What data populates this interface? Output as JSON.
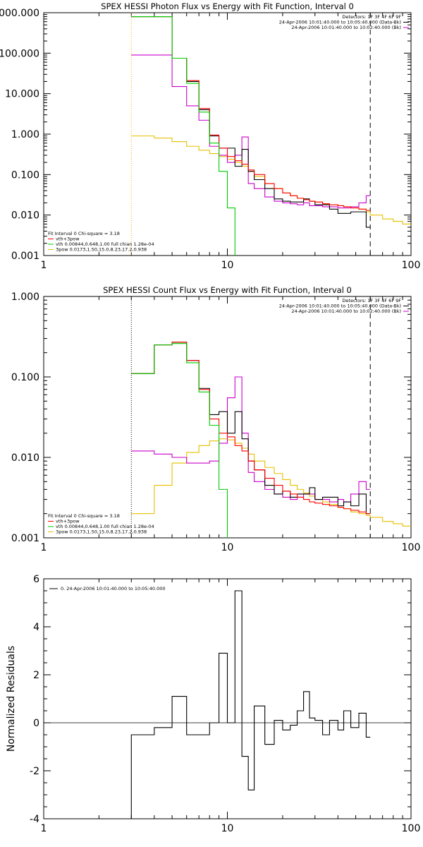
{
  "chart_data": [
    {
      "type": "line",
      "title": "SPEX HESSI Photon Flux vs Energy with Fit Function, Interval 0",
      "xlabel": "",
      "ylabel": "",
      "x_scale": "log",
      "y_scale": "log",
      "xlim": [
        1,
        100
      ],
      "ylim": [
        0.001,
        1000
      ],
      "x_ticks": [
        "1",
        "10",
        "100"
      ],
      "y_ticks": [
        "0.001",
        "0.010",
        "0.100",
        "1.000",
        "10.000",
        "100.000",
        "1000.000"
      ],
      "y_tick_values": [
        0.001,
        0.01,
        0.1,
        1,
        10,
        100,
        1000
      ],
      "vlines": [
        {
          "x": 3,
          "style": "dotted",
          "color": "#ffa500"
        },
        {
          "x": 60,
          "style": "dashed",
          "color": "#000000"
        }
      ],
      "legend_top": [
        "Detectors: 1F 3F 4F 6F 9F",
        "24-Apr-2006 10:01:40.000 to 10:05:40.000 (Data-Bk)",
        "24-Apr-2006 10:01:40.000 to 10:02:40.000 (Bk)"
      ],
      "legend_top_colors": [
        "none",
        "#000000",
        "#cc00cc"
      ],
      "legend_bottom": [
        "Fit Interval 0   Chi-square = 3.18",
        "vth+3pow",
        "vth 0.00844,0.648,1.00   full chian 1.28e-04",
        "3pow 0.0173,1.50,15.0,8.23,17.2,0.938"
      ],
      "legend_bottom_colors": [
        "none",
        "#ff0000",
        "#00cc00",
        "#e5c000"
      ],
      "series": [
        {
          "name": "data-bk",
          "color": "#000000",
          "edges": [
            3,
            4,
            5,
            6,
            7,
            8,
            9,
            10,
            11,
            12,
            13,
            14,
            16,
            18,
            20,
            22,
            24,
            26,
            28,
            30,
            33,
            36,
            40,
            43,
            47,
            52,
            57,
            60
          ],
          "values": [
            800,
            800,
            75,
            20,
            4,
            0.9,
            0.45,
            0.45,
            0.16,
            0.42,
            0.12,
            0.075,
            0.045,
            0.025,
            0.022,
            0.021,
            0.021,
            0.025,
            0.022,
            0.018,
            0.018,
            0.014,
            0.011,
            0.011,
            0.012,
            0.012,
            0.005
          ]
        },
        {
          "name": "bk",
          "color": "#cc00cc",
          "edges": [
            3,
            4,
            5,
            6,
            7,
            8,
            9,
            10,
            11,
            12,
            13,
            14,
            16,
            18,
            20,
            22,
            24,
            26,
            28,
            30,
            33,
            36,
            40,
            43,
            47,
            52,
            57,
            60
          ],
          "values": [
            90,
            90,
            15,
            5,
            2.2,
            0.5,
            0.3,
            0.2,
            0.3,
            0.85,
            0.06,
            0.045,
            0.028,
            0.022,
            0.02,
            0.019,
            0.018,
            0.02,
            0.017,
            0.017,
            0.016,
            0.016,
            0.015,
            0.015,
            0.016,
            0.02,
            0.03
          ]
        },
        {
          "name": "vth+3pow",
          "color": "#ff0000",
          "edges": [
            3,
            4,
            5,
            6,
            7,
            8,
            9,
            10,
            11,
            12,
            13,
            14,
            16,
            18,
            20,
            22,
            24,
            26,
            28,
            30,
            33,
            36,
            40,
            43,
            47,
            52,
            57,
            60
          ],
          "values": [
            800,
            800,
            75,
            21,
            4.3,
            0.95,
            0.45,
            0.28,
            0.22,
            0.18,
            0.13,
            0.1,
            0.06,
            0.045,
            0.035,
            0.03,
            0.026,
            0.024,
            0.022,
            0.021,
            0.019,
            0.018,
            0.017,
            0.016,
            0.015,
            0.014,
            0.013
          ]
        },
        {
          "name": "vth",
          "color": "#00cc00",
          "edges": [
            3,
            4,
            5,
            6,
            7,
            8,
            9,
            10,
            11
          ],
          "values": [
            800,
            800,
            75,
            18,
            3.5,
            0.6,
            0.12,
            0.015
          ]
        },
        {
          "name": "3pow",
          "color": "#e5c000",
          "edges": [
            3,
            4,
            5,
            6,
            7,
            8,
            9,
            10,
            11,
            12,
            13,
            14,
            16,
            18,
            20,
            22,
            24,
            26,
            28,
            30,
            33,
            36,
            40,
            43,
            47,
            52,
            57,
            60,
            70,
            80,
            90,
            100
          ],
          "values": [
            0.9,
            0.8,
            0.65,
            0.5,
            0.4,
            0.33,
            0.28,
            0.24,
            0.2,
            0.16,
            0.12,
            0.09,
            0.06,
            0.045,
            0.035,
            0.03,
            0.026,
            0.024,
            0.022,
            0.021,
            0.019,
            0.018,
            0.017,
            0.016,
            0.015,
            0.014,
            0.012,
            0.01,
            0.008,
            0.007,
            0.006
          ]
        }
      ]
    },
    {
      "type": "line",
      "title": "SPEX HESSI Count Flux vs Energy with Fit Function, Interval 0",
      "xlabel": "",
      "ylabel": "",
      "x_scale": "log",
      "y_scale": "log",
      "xlim": [
        1,
        100
      ],
      "ylim": [
        0.001,
        1
      ],
      "x_ticks": [
        "1",
        "10",
        "100"
      ],
      "y_ticks": [
        "0.001",
        "0.010",
        "0.100",
        "1.000"
      ],
      "y_tick_values": [
        0.001,
        0.01,
        0.1,
        1
      ],
      "vlines": [
        {
          "x": 3,
          "style": "dotted",
          "color": "#000000"
        },
        {
          "x": 60,
          "style": "dashed",
          "color": "#000000"
        }
      ],
      "legend_top": [
        "Detectors: 1F 3F 4F 6F 9F",
        "24-Apr-2006 10:01:40.000 to 10:05:40.000 (Data-Bk)",
        "24-Apr-2006 10:01:40.000 to 10:02:40.000 (Bk)"
      ],
      "legend_top_colors": [
        "none",
        "#000000",
        "#cc00cc"
      ],
      "legend_bottom": [
        "Fit Interval 0   Chi-square = 3.18",
        "vth+3pow",
        "vth 0.00844,0.648,1.00   full chian 1.28e-04",
        "3pow 0.0173,1.50,15.0,8.23,17.2,0.938"
      ],
      "legend_bottom_colors": [
        "none",
        "#ff0000",
        "#00cc00",
        "#e5c000"
      ],
      "series": [
        {
          "name": "data-bk",
          "color": "#000000",
          "edges": [
            3,
            4,
            5,
            6,
            7,
            8,
            9,
            10,
            11,
            12,
            13,
            14,
            16,
            18,
            20,
            22,
            24,
            26,
            28,
            30,
            33,
            36,
            40,
            43,
            47,
            52,
            57,
            60
          ],
          "values": [
            0.11,
            0.25,
            0.27,
            0.16,
            0.072,
            0.034,
            0.037,
            0.02,
            0.037,
            0.017,
            0.009,
            0.007,
            0.0045,
            0.0035,
            0.0038,
            0.0032,
            0.0035,
            0.0035,
            0.0042,
            0.003,
            0.0032,
            0.0032,
            0.0025,
            0.0028,
            0.0025,
            0.0035,
            0.002
          ]
        },
        {
          "name": "bk",
          "color": "#cc00cc",
          "edges": [
            3,
            4,
            5,
            6,
            7,
            8,
            9,
            10,
            11,
            12,
            13,
            14,
            16,
            18,
            20,
            22,
            24,
            26,
            28,
            30,
            33,
            36,
            40,
            43,
            47,
            52,
            57,
            60
          ],
          "values": [
            0.012,
            0.011,
            0.01,
            0.0085,
            0.0085,
            0.009,
            0.015,
            0.055,
            0.1,
            0.02,
            0.0065,
            0.005,
            0.004,
            0.0035,
            0.0032,
            0.003,
            0.0032,
            0.0035,
            0.0035,
            0.003,
            0.003,
            0.0028,
            0.003,
            0.0028,
            0.0035,
            0.005,
            0.004
          ]
        },
        {
          "name": "vth+3pow",
          "color": "#ff0000",
          "edges": [
            3,
            4,
            5,
            6,
            7,
            8,
            9,
            10,
            11,
            12,
            13,
            14,
            16,
            18,
            20,
            22,
            24,
            26,
            28,
            30,
            33,
            36,
            40,
            43,
            47,
            52,
            57,
            60
          ],
          "values": [
            0.11,
            0.25,
            0.27,
            0.16,
            0.07,
            0.03,
            0.02,
            0.018,
            0.014,
            0.012,
            0.009,
            0.007,
            0.0055,
            0.0045,
            0.0038,
            0.0035,
            0.0032,
            0.003,
            0.0028,
            0.0027,
            0.0026,
            0.0025,
            0.0024,
            0.0023,
            0.0022,
            0.0021,
            0.002
          ]
        },
        {
          "name": "vth",
          "color": "#00cc00",
          "edges": [
            3,
            4,
            5,
            6,
            7,
            8,
            9,
            10
          ],
          "values": [
            0.11,
            0.25,
            0.26,
            0.15,
            0.065,
            0.025,
            0.004
          ]
        },
        {
          "name": "3pow",
          "color": "#e5c000",
          "edges": [
            3,
            4,
            5,
            6,
            7,
            8,
            9,
            10,
            11,
            12,
            13,
            14,
            16,
            18,
            20,
            22,
            24,
            26,
            28,
            30,
            33,
            36,
            40,
            43,
            47,
            52,
            57,
            60,
            70,
            80,
            90,
            100
          ],
          "values": [
            0.002,
            0.0045,
            0.0085,
            0.0115,
            0.014,
            0.016,
            0.017,
            0.0165,
            0.015,
            0.013,
            0.011,
            0.009,
            0.0075,
            0.0063,
            0.0053,
            0.0045,
            0.004,
            0.0036,
            0.0033,
            0.003,
            0.0028,
            0.0026,
            0.0024,
            0.0023,
            0.0021,
            0.002,
            0.0019,
            0.0018,
            0.0016,
            0.0015,
            0.0014
          ]
        }
      ]
    },
    {
      "type": "line",
      "title": "",
      "xlabel": "",
      "ylabel": "Normalized Residuals",
      "x_scale": "log",
      "y_scale": "linear",
      "xlim": [
        1,
        100
      ],
      "ylim": [
        -4,
        6
      ],
      "x_ticks": [
        "1",
        "10",
        "100"
      ],
      "y_ticks": [
        "-4",
        "-2",
        "0",
        "2",
        "4",
        "6"
      ],
      "y_tick_values": [
        -4,
        -2,
        0,
        2,
        4,
        6
      ],
      "legend": "0. 24-Apr-2006 10:01:40.000 to 10:05:40.000",
      "series": [
        {
          "name": "residuals",
          "color": "#000000",
          "edges": [
            3,
            4,
            5,
            6,
            7,
            8,
            9,
            10,
            11,
            12,
            13,
            14,
            16,
            18,
            20,
            22,
            24,
            26,
            28,
            30,
            33,
            36,
            40,
            43,
            47,
            52,
            57,
            60
          ],
          "values": [
            -0.5,
            -0.2,
            1.1,
            -0.5,
            -0.5,
            0.0,
            2.9,
            0.0,
            5.5,
            -1.4,
            -2.8,
            0.7,
            -0.9,
            0.1,
            -0.3,
            -0.1,
            0.5,
            1.3,
            0.2,
            0.1,
            -0.5,
            0.1,
            -0.3,
            0.5,
            -0.2,
            0.4,
            -0.6
          ]
        }
      ]
    }
  ]
}
